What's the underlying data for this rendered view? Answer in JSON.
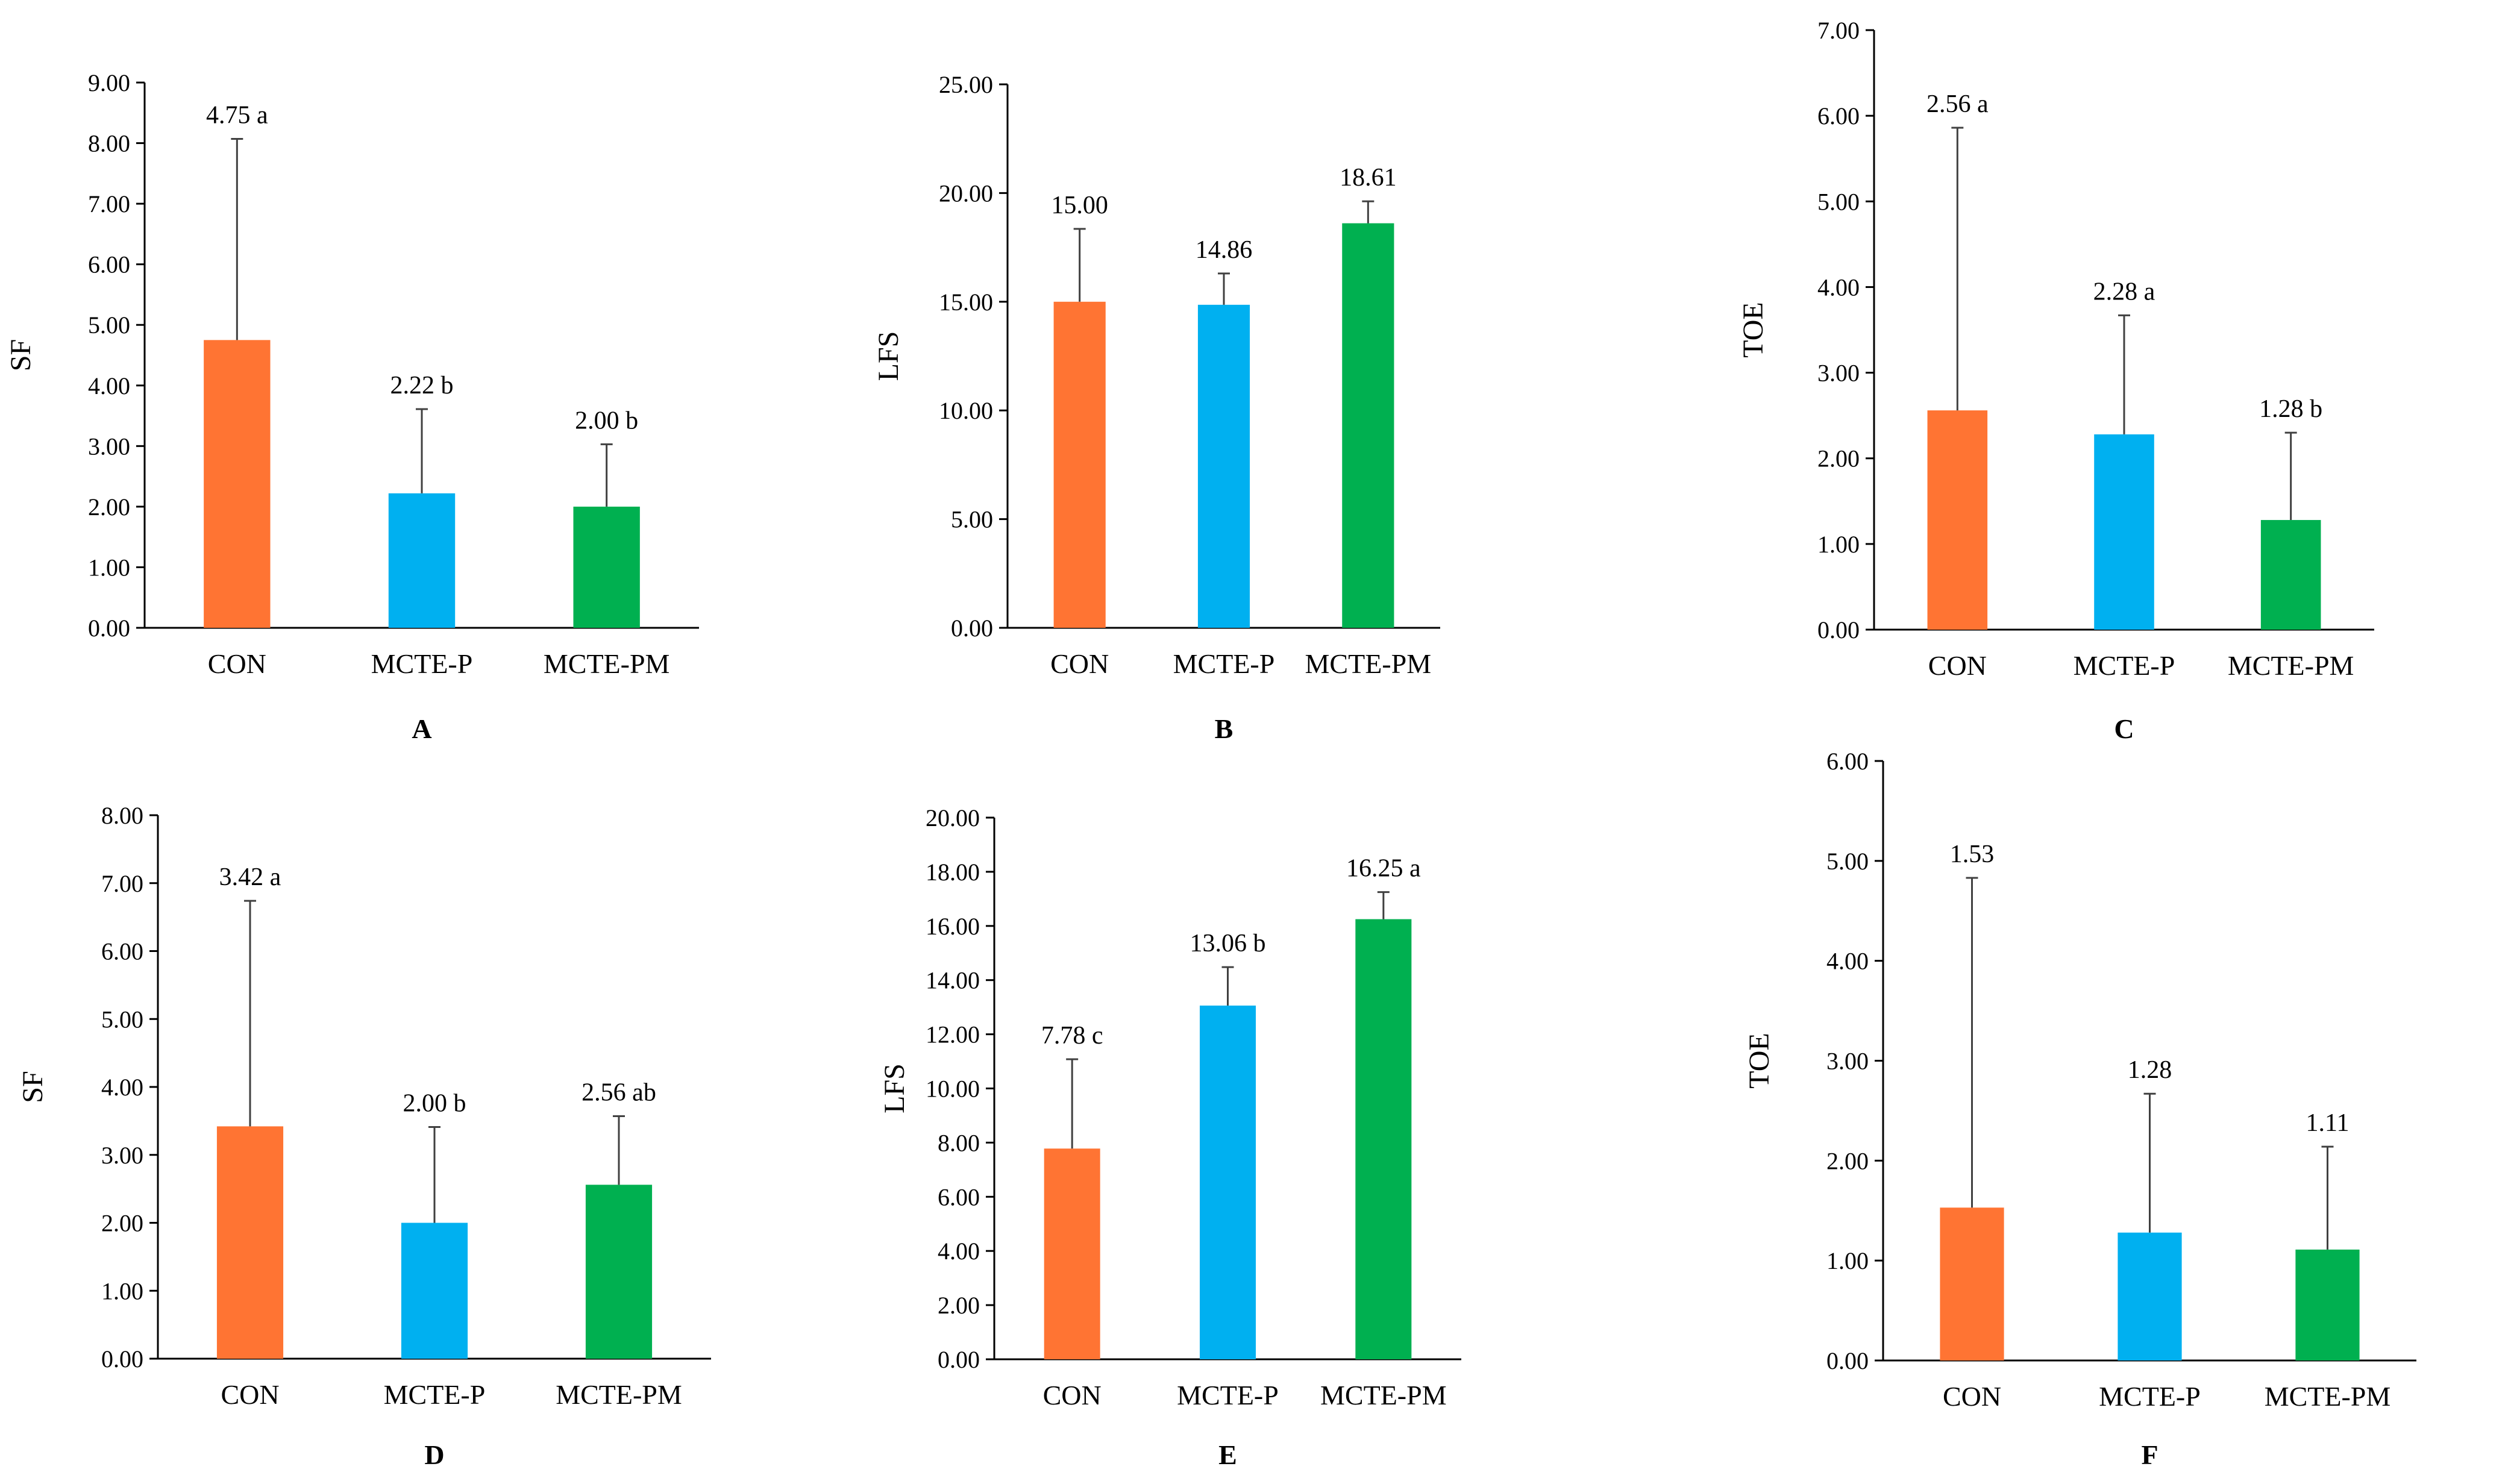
{
  "figure": {
    "colors": {
      "bar_colors": [
        "#ff7433",
        "#00b0f0",
        "#00b050"
      ],
      "axis": "#000000",
      "error_bar": "#404040"
    }
  },
  "chart_data": [
    {
      "type": "bar",
      "panel": "A",
      "ylabel": "SF",
      "ylim": [
        0,
        9
      ],
      "ystep": 1,
      "categories": [
        "CON",
        "MCTE-P",
        "MCTE-PM"
      ],
      "values": [
        4.75,
        2.22,
        2.0
      ],
      "error_upper": [
        8.07,
        3.61,
        3.03
      ],
      "data_labels": [
        "4.75 a",
        "2.22 b",
        "2.00 b"
      ]
    },
    {
      "type": "bar",
      "panel": "B",
      "ylabel": "LFS",
      "ylim": [
        0,
        25
      ],
      "ystep": 5,
      "categories": [
        "CON",
        "MCTE-P",
        "MCTE-PM"
      ],
      "values": [
        15.0,
        14.86,
        18.61
      ],
      "error_upper": [
        18.35,
        16.3,
        19.62
      ],
      "data_labels": [
        "15.00",
        "14.86",
        "18.61"
      ]
    },
    {
      "type": "bar",
      "panel": "C",
      "ylabel": "TOE",
      "ylim": [
        0,
        7
      ],
      "ystep": 1,
      "categories": [
        "CON",
        "MCTE-P",
        "MCTE-PM"
      ],
      "values": [
        2.56,
        2.28,
        1.28
      ],
      "error_upper": [
        5.86,
        3.67,
        2.3
      ],
      "data_labels": [
        "2.56 a",
        "2.28 a",
        "1.28 b"
      ]
    },
    {
      "type": "bar",
      "panel": "D",
      "ylabel": "SF",
      "ylim": [
        0,
        8
      ],
      "ystep": 1,
      "categories": [
        "CON",
        "MCTE-P",
        "MCTE-PM"
      ],
      "values": [
        3.42,
        2.0,
        2.56
      ],
      "error_upper": [
        6.74,
        3.41,
        3.57
      ],
      "data_labels": [
        "3.42 a",
        "2.00 b",
        "2.56 ab"
      ]
    },
    {
      "type": "bar",
      "panel": "E",
      "ylabel": "LFS",
      "ylim": [
        0,
        20
      ],
      "ystep": 2,
      "categories": [
        "CON",
        "MCTE-P",
        "MCTE-PM"
      ],
      "values": [
        7.78,
        13.06,
        16.25
      ],
      "error_upper": [
        11.08,
        14.48,
        17.25
      ],
      "data_labels": [
        "7.78 c",
        "13.06 b",
        "16.25 a"
      ]
    },
    {
      "type": "bar",
      "panel": "F",
      "ylabel": "TOE",
      "ylim": [
        0,
        6
      ],
      "ystep": 1,
      "categories": [
        "CON",
        "MCTE-P",
        "MCTE-PM"
      ],
      "values": [
        1.53,
        1.28,
        1.11
      ],
      "error_upper": [
        4.83,
        2.67,
        2.14
      ],
      "data_labels": [
        "1.53",
        "1.28",
        "1.11"
      ]
    }
  ]
}
